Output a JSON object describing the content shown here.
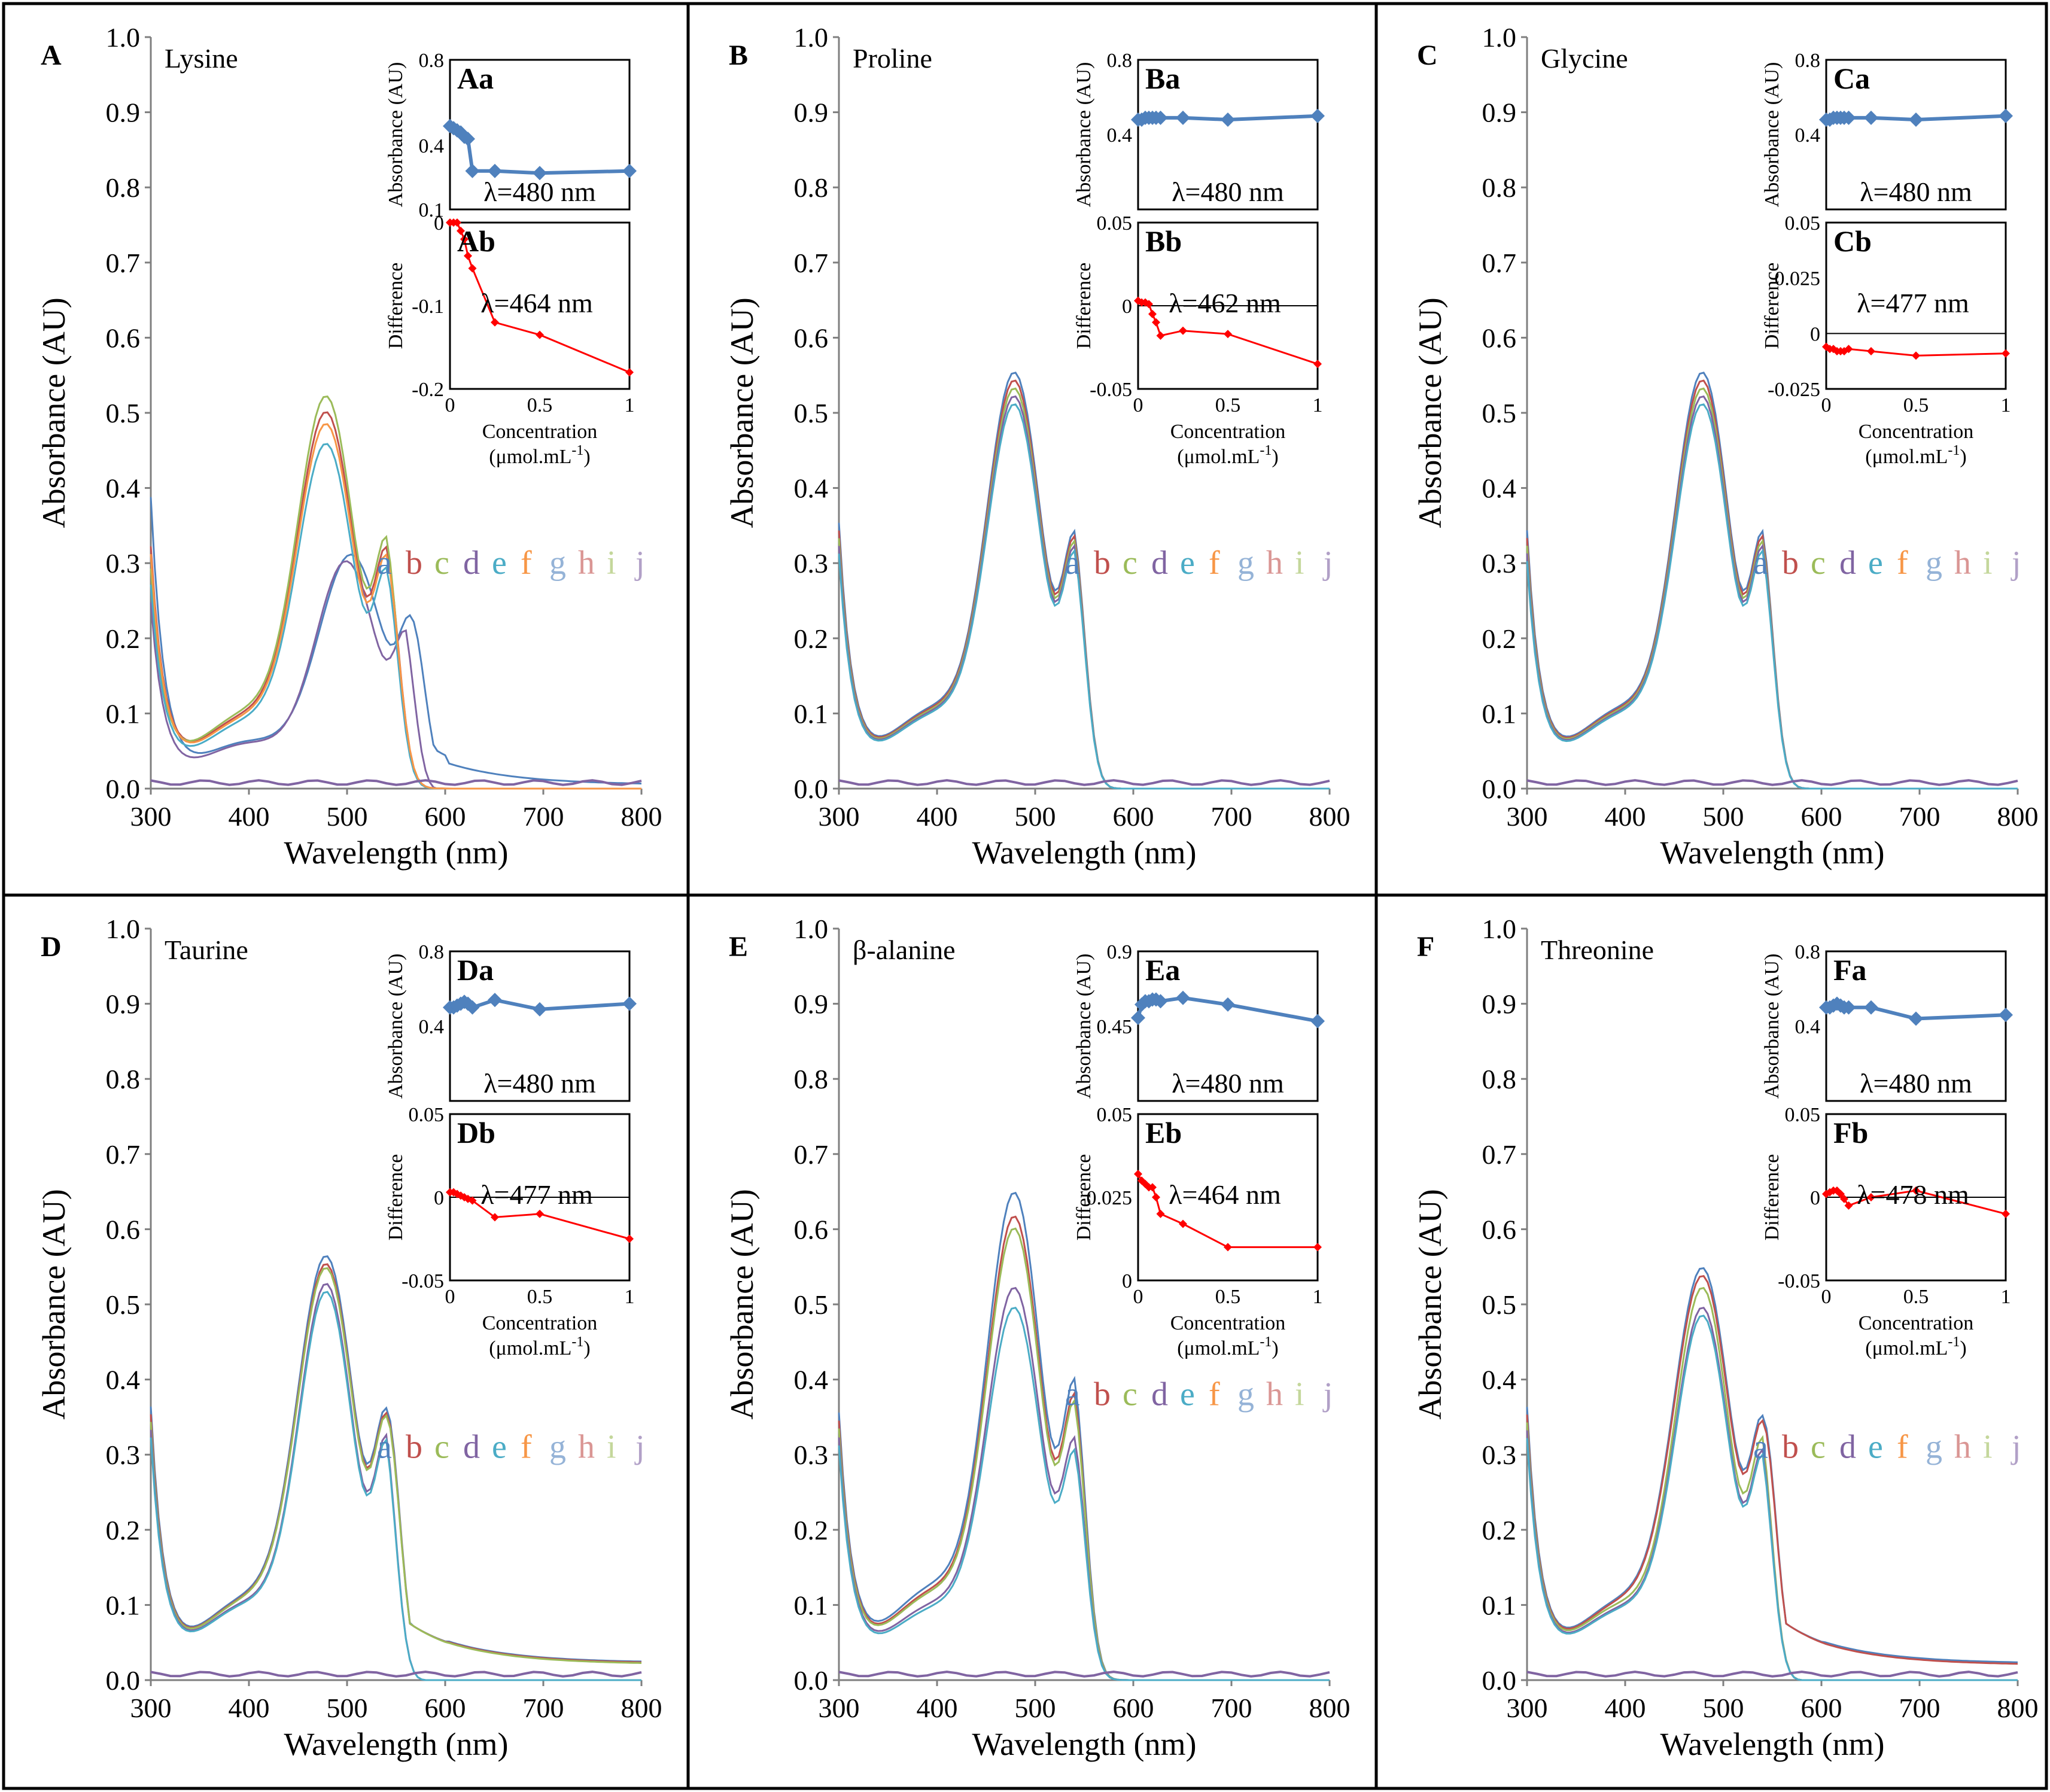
{
  "chart_data": {
    "type": "line",
    "legend_letters": [
      {
        "letter": "a",
        "color": "#4f81bd"
      },
      {
        "letter": "b",
        "color": "#c0504d"
      },
      {
        "letter": "c",
        "color": "#9bbb59"
      },
      {
        "letter": "d",
        "color": "#8064a2"
      },
      {
        "letter": "e",
        "color": "#4bacc6"
      },
      {
        "letter": "f",
        "color": "#f79646"
      },
      {
        "letter": "g",
        "color": "#95b3d7"
      },
      {
        "letter": "h",
        "color": "#da9694"
      },
      {
        "letter": "i",
        "color": "#c4d79b"
      },
      {
        "letter": "j",
        "color": "#b1a0c7"
      }
    ],
    "inset_colors": {
      "absorbance": "#4f81bd",
      "difference": "#ff0000"
    },
    "main_axes": {
      "xlabel": "Wavelength  (nm)",
      "ylabel": "Absorbance (AU)",
      "xlim": [
        300,
        800
      ],
      "ylim": [
        0.0,
        1.0
      ],
      "xticks": [
        "300",
        "400",
        "500",
        "600",
        "700",
        "800"
      ],
      "yticks": [
        "0.0",
        "0.1",
        "0.2",
        "0.3",
        "0.4",
        "0.5",
        "0.6",
        "0.7",
        "0.8",
        "0.9",
        "1.0"
      ]
    },
    "inset_axes": {
      "top_ylabel": "Absorbance (AU)",
      "bottom_ylabel": "Difference",
      "xlabel_line1": "Concentration",
      "xlabel_line2": "(μmol.mL",
      "xlabel_sup": "-1",
      "xlabel_close": ")",
      "xticks": [
        "0",
        "0.5",
        "1"
      ]
    },
    "panels": [
      {
        "letter": "A",
        "name": "Lysine",
        "legend_y": 0.3,
        "spectra": [
          {
            "peak": 505,
            "height": 0.305,
            "base": 0.38,
            "tail": 0.005,
            "cutoff": null,
            "width": 48
          },
          {
            "peak": 480,
            "height": 0.475,
            "base": 0.31,
            "tail": 0.0,
            "cutoff": 640,
            "width": 42
          },
          {
            "peak": 480,
            "height": 0.495,
            "base": 0.28,
            "tail": 0.0,
            "cutoff": 610,
            "width": 42
          },
          {
            "peak": 500,
            "height": 0.295,
            "base": 0.24,
            "tail": 0.0,
            "cutoff": 590,
            "width": 45
          },
          {
            "peak": 480,
            "height": 0.435,
            "base": 0.26,
            "tail": 0.0,
            "cutoff": 620,
            "width": 42
          },
          {
            "peak": 480,
            "height": 0.46,
            "base": 0.3,
            "tail": 0.0,
            "cutoff": 650,
            "width": 42
          }
        ],
        "inset_top": {
          "label": "Aa",
          "lambda": "λ=480 nm",
          "yticks": [
            "0.8",
            "0.4",
            "0.1"
          ],
          "ylim": [
            0.1,
            0.8
          ],
          "x": [
            0,
            0.02,
            0.04,
            0.06,
            0.08,
            0.1,
            0.125,
            0.25,
            0.5,
            1
          ],
          "y": [
            0.49,
            0.48,
            0.47,
            0.46,
            0.44,
            0.43,
            0.28,
            0.28,
            0.27,
            0.28
          ]
        },
        "inset_bottom": {
          "label": "Ab",
          "lambda": "λ=464 nm",
          "yticks": [
            "0",
            "-0.1",
            "-0.2"
          ],
          "ylim": [
            -0.2,
            0.0
          ],
          "zero": 0,
          "x": [
            0,
            0.02,
            0.04,
            0.06,
            0.08,
            0.1,
            0.125,
            0.25,
            0.5,
            1
          ],
          "y": [
            0,
            0,
            0,
            -0.01,
            -0.02,
            -0.04,
            -0.055,
            -0.12,
            -0.135,
            -0.18
          ]
        }
      },
      {
        "letter": "B",
        "name": "Proline",
        "legend_y": 0.3,
        "spectra": [
          {
            "peak": 480,
            "height": 0.525,
            "base": 0.34,
            "tail": 0.0,
            "cutoff": 590,
            "width": 40
          },
          {
            "peak": 480,
            "height": 0.515,
            "base": 0.33,
            "tail": 0.0,
            "cutoff": 590,
            "width": 40
          },
          {
            "peak": 480,
            "height": 0.505,
            "base": 0.32,
            "tail": 0.0,
            "cutoff": 590,
            "width": 40
          },
          {
            "peak": 480,
            "height": 0.495,
            "base": 0.31,
            "tail": 0.0,
            "cutoff": 590,
            "width": 40
          },
          {
            "peak": 480,
            "height": 0.485,
            "base": 0.3,
            "tail": 0.0,
            "cutoff": 590,
            "width": 40
          }
        ],
        "inset_top": {
          "label": "Ba",
          "lambda": "λ=480 nm",
          "yticks": [
            "0.8",
            "0.4"
          ],
          "ylim": [
            0.0,
            0.8
          ],
          "x": [
            0,
            0.02,
            0.04,
            0.06,
            0.08,
            0.1,
            0.125,
            0.25,
            0.5,
            1
          ],
          "y": [
            0.48,
            0.48,
            0.49,
            0.49,
            0.49,
            0.49,
            0.49,
            0.49,
            0.48,
            0.5
          ]
        },
        "inset_bottom": {
          "label": "Bb",
          "lambda": "λ=462 nm",
          "yticks": [
            "0.05",
            "0",
            "-0.05"
          ],
          "ylim": [
            -0.05,
            0.05
          ],
          "zero": 0,
          "x": [
            0,
            0.02,
            0.04,
            0.06,
            0.08,
            0.1,
            0.125,
            0.25,
            0.5,
            1
          ],
          "y": [
            0.003,
            0.002,
            0.002,
            0.001,
            -0.005,
            -0.01,
            -0.018,
            -0.015,
            -0.017,
            -0.035
          ]
        }
      },
      {
        "letter": "C",
        "name": "Glycine",
        "legend_y": 0.3,
        "spectra": [
          {
            "peak": 480,
            "height": 0.525,
            "base": 0.33,
            "tail": 0.0,
            "cutoff": 590,
            "width": 40
          },
          {
            "peak": 480,
            "height": 0.515,
            "base": 0.32,
            "tail": 0.0,
            "cutoff": 590,
            "width": 40
          },
          {
            "peak": 480,
            "height": 0.505,
            "base": 0.31,
            "tail": 0.0,
            "cutoff": 590,
            "width": 40
          },
          {
            "peak": 480,
            "height": 0.495,
            "base": 0.3,
            "tail": 0.0,
            "cutoff": 590,
            "width": 40
          },
          {
            "peak": 480,
            "height": 0.485,
            "base": 0.29,
            "tail": 0.0,
            "cutoff": 590,
            "width": 40
          }
        ],
        "inset_top": {
          "label": "Ca",
          "lambda": "λ=480 nm",
          "yticks": [
            "0.8",
            "0.4"
          ],
          "ylim": [
            0.0,
            0.8
          ],
          "x": [
            0,
            0.02,
            0.04,
            0.06,
            0.08,
            0.1,
            0.125,
            0.25,
            0.5,
            1
          ],
          "y": [
            0.48,
            0.48,
            0.49,
            0.49,
            0.49,
            0.49,
            0.49,
            0.49,
            0.48,
            0.5
          ]
        },
        "inset_bottom": {
          "label": "Cb",
          "lambda": "λ=477 nm",
          "yticks": [
            "0.05",
            "0.025",
            "0",
            "-0.025"
          ],
          "ylim": [
            -0.025,
            0.05
          ],
          "zero": 0,
          "x": [
            0,
            0.02,
            0.04,
            0.06,
            0.08,
            0.1,
            0.125,
            0.25,
            0.5,
            1
          ],
          "y": [
            -0.006,
            -0.007,
            -0.007,
            -0.008,
            -0.008,
            -0.008,
            -0.007,
            -0.008,
            -0.01,
            -0.009
          ]
        }
      },
      {
        "letter": "D",
        "name": "Taurine",
        "legend_y": 0.31,
        "spectra": [
          {
            "peak": 480,
            "height": 0.535,
            "base": 0.35,
            "tail": 0.023,
            "cutoff": null,
            "width": 42
          },
          {
            "peak": 480,
            "height": 0.525,
            "base": 0.34,
            "tail": 0.022,
            "cutoff": null,
            "width": 42
          },
          {
            "peak": 480,
            "height": 0.52,
            "base": 0.33,
            "tail": 0.021,
            "cutoff": null,
            "width": 42
          },
          {
            "peak": 480,
            "height": 0.5,
            "base": 0.32,
            "tail": 0.0,
            "cutoff": 580,
            "width": 40
          },
          {
            "peak": 480,
            "height": 0.49,
            "base": 0.31,
            "tail": 0.0,
            "cutoff": 580,
            "width": 40
          }
        ],
        "inset_top": {
          "label": "Da",
          "lambda": "λ=480 nm",
          "yticks": [
            "0.8",
            "0.4"
          ],
          "ylim": [
            0.0,
            0.8
          ],
          "x": [
            0,
            0.02,
            0.04,
            0.06,
            0.08,
            0.1,
            0.125,
            0.25,
            0.5,
            1
          ],
          "y": [
            0.5,
            0.5,
            0.51,
            0.52,
            0.53,
            0.52,
            0.5,
            0.54,
            0.49,
            0.52
          ]
        },
        "inset_bottom": {
          "label": "Db",
          "lambda": "λ=477 nm",
          "yticks": [
            "0.05",
            "0",
            "-0.05"
          ],
          "ylim": [
            -0.05,
            0.05
          ],
          "zero": 0,
          "x": [
            0,
            0.02,
            0.04,
            0.06,
            0.08,
            0.1,
            0.125,
            0.25,
            0.5,
            1
          ],
          "y": [
            0.003,
            0.003,
            0.002,
            0.001,
            0.0,
            -0.001,
            -0.002,
            -0.012,
            -0.01,
            -0.025
          ]
        }
      },
      {
        "letter": "E",
        "name": "β-alanine",
        "legend_y": 0.38,
        "spectra": [
          {
            "peak": 480,
            "height": 0.615,
            "base": 0.34,
            "tail": 0.0,
            "cutoff": 600,
            "width": 40
          },
          {
            "peak": 480,
            "height": 0.585,
            "base": 0.33,
            "tail": 0.0,
            "cutoff": 600,
            "width": 40
          },
          {
            "peak": 480,
            "height": 0.57,
            "base": 0.32,
            "tail": 0.0,
            "cutoff": 600,
            "width": 40
          },
          {
            "peak": 480,
            "height": 0.495,
            "base": 0.31,
            "tail": 0.0,
            "cutoff": 600,
            "width": 40
          },
          {
            "peak": 480,
            "height": 0.47,
            "base": 0.3,
            "tail": 0.0,
            "cutoff": 600,
            "width": 40
          }
        ],
        "inset_top": {
          "label": "Ea",
          "lambda": "λ=480 nm",
          "yticks": [
            "0.9",
            "0.45"
          ],
          "ylim": [
            0.0,
            0.9
          ],
          "x": [
            0,
            0.02,
            0.04,
            0.06,
            0.08,
            0.1,
            0.125,
            0.25,
            0.5,
            1
          ],
          "y": [
            0.5,
            0.58,
            0.6,
            0.6,
            0.61,
            0.61,
            0.6,
            0.62,
            0.58,
            0.48
          ]
        },
        "inset_bottom": {
          "label": "Eb",
          "lambda": "λ=464 nm",
          "yticks": [
            "0.05",
            "0.025",
            "0"
          ],
          "ylim": [
            0.0,
            0.05
          ],
          "zero": 0,
          "x": [
            0,
            0.02,
            0.04,
            0.06,
            0.08,
            0.1,
            0.125,
            0.25,
            0.5,
            1
          ],
          "y": [
            0.032,
            0.03,
            0.029,
            0.028,
            0.028,
            0.025,
            0.02,
            0.017,
            0.01,
            0.01
          ]
        }
      },
      {
        "letter": "F",
        "name": "Threonine",
        "legend_y": 0.31,
        "spectra": [
          {
            "peak": 480,
            "height": 0.52,
            "base": 0.35,
            "tail": 0.022,
            "cutoff": null,
            "width": 42
          },
          {
            "peak": 480,
            "height": 0.51,
            "base": 0.34,
            "tail": 0.02,
            "cutoff": null,
            "width": 42
          },
          {
            "peak": 480,
            "height": 0.495,
            "base": 0.33,
            "tail": 0.0,
            "cutoff": 580,
            "width": 40
          },
          {
            "peak": 480,
            "height": 0.47,
            "base": 0.32,
            "tail": 0.0,
            "cutoff": 580,
            "width": 40
          },
          {
            "peak": 480,
            "height": 0.46,
            "base": 0.31,
            "tail": 0.0,
            "cutoff": 580,
            "width": 40
          }
        ],
        "inset_top": {
          "label": "Fa",
          "lambda": "λ=480 nm",
          "yticks": [
            "0.8",
            "0.4"
          ],
          "ylim": [
            0.0,
            0.8
          ],
          "x": [
            0,
            0.02,
            0.04,
            0.06,
            0.08,
            0.1,
            0.125,
            0.25,
            0.5,
            1
          ],
          "y": [
            0.5,
            0.5,
            0.51,
            0.52,
            0.51,
            0.5,
            0.5,
            0.5,
            0.44,
            0.46
          ]
        },
        "inset_bottom": {
          "label": "Fb",
          "lambda": "λ=478 nm",
          "yticks": [
            "0.05",
            "0",
            "-0.05"
          ],
          "ylim": [
            -0.05,
            0.05
          ],
          "zero": 0,
          "x": [
            0,
            0.02,
            0.04,
            0.06,
            0.08,
            0.1,
            0.125,
            0.25,
            0.5,
            1
          ],
          "y": [
            0.002,
            0.003,
            0.004,
            0.004,
            0.002,
            -0.001,
            -0.005,
            0.0,
            0.004,
            -0.01
          ]
        }
      }
    ]
  }
}
